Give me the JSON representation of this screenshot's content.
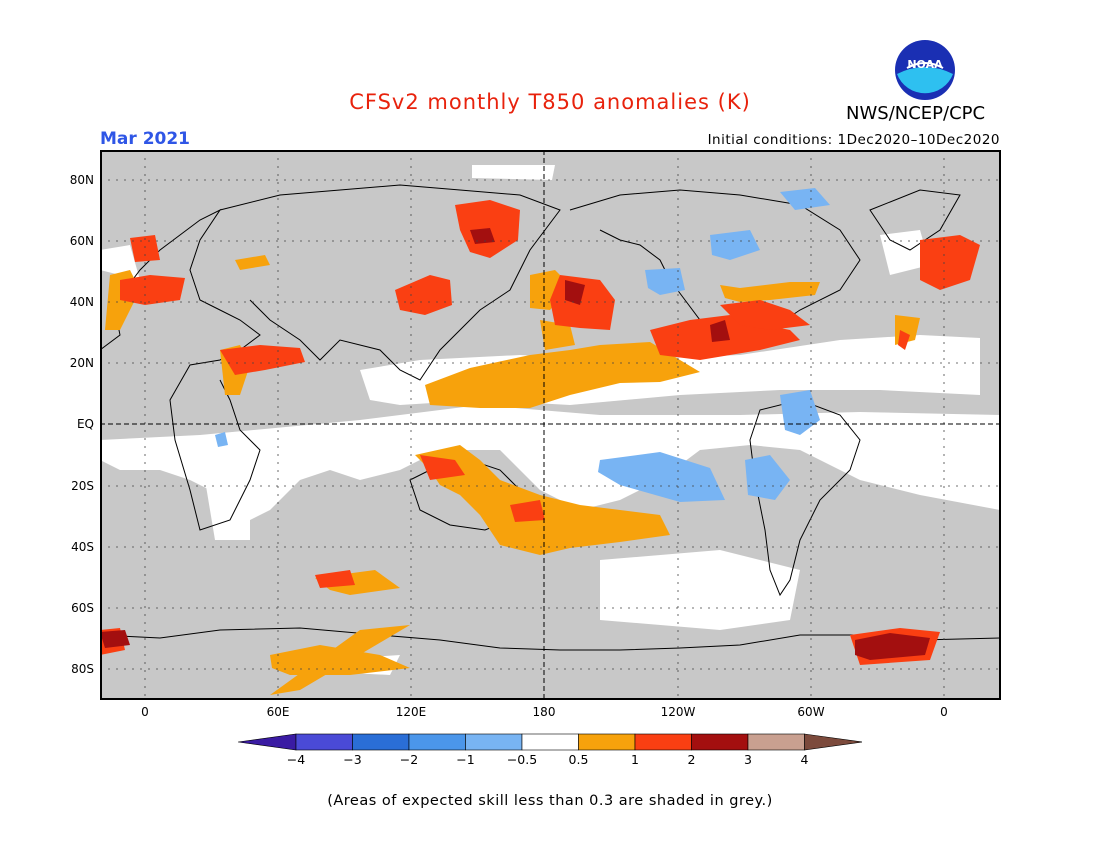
{
  "header": {
    "title": "CFSv2 monthly T850 anomalies (K)",
    "agency": "NWS/NCEP/CPC",
    "logo_text": "NOAA",
    "valid_month": "Mar 2021",
    "initial_conditions": "Initial conditions: 1Dec2020–10Dec2020"
  },
  "colors": {
    "title": "#e8220c",
    "month": "#2f56e6",
    "skill_grey": "#c8c8c8",
    "ocean_grey": "#c8c8c8"
  },
  "axes": {
    "lat_labels": [
      "80N",
      "60N",
      "40N",
      "20N",
      "EQ",
      "20S",
      "40S",
      "60S",
      "80S"
    ],
    "lon_labels": [
      "0",
      "60E",
      "120E",
      "180",
      "120W",
      "60W",
      "0"
    ]
  },
  "colorbar": {
    "bins": [
      {
        "color": "#3a1ba3"
      },
      {
        "color": "#4a4ad6"
      },
      {
        "color": "#2a6ed6"
      },
      {
        "color": "#4b96ea"
      },
      {
        "color": "#78b4f3"
      },
      {
        "color": "#ffffff"
      },
      {
        "color": "#f7a20c"
      },
      {
        "color": "#fa3f12"
      },
      {
        "color": "#a30f0f"
      },
      {
        "color": "#c9a090"
      },
      {
        "color": "#7c4a3c"
      }
    ],
    "labels": [
      "−4",
      "−3",
      "−2",
      "−1",
      "−0.5",
      "0.5",
      "1",
      "2",
      "3",
      "4"
    ]
  },
  "footnote": "(Areas of expected skill less than 0.3 are shaded in grey.)"
}
